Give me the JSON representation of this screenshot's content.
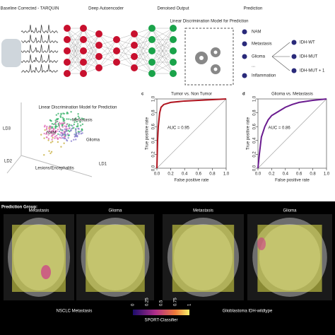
{
  "pipeline": {
    "steps": [
      "Baseline Corrected - TARQUIN",
      "Deep Autoencoder",
      "Denoised Output",
      "Prediction"
    ],
    "model_box": "Linear Discrimination Model for Prediction",
    "classes": [
      "NAM",
      "Metastasis",
      "Glioma",
      "...",
      "Inflammation"
    ],
    "subtypes": [
      "IDH-WT",
      "IDH-MUT",
      "IDH-MUT + 1"
    ]
  },
  "scatter": {
    "title": "Linear Discrimination Model for Prediction",
    "axes": [
      "LD3",
      "LD2",
      "LD1"
    ],
    "groups": [
      "Metastasis",
      "Glioma",
      "NAM",
      "Lesions/Encephalitis"
    ]
  },
  "chart_data": [
    {
      "type": "line",
      "label": "c",
      "title": "Tumor vs. Non Tumor",
      "xlabel": "False positive rate",
      "ylabel": "True positive rate",
      "annotation": "AUC = 0.95",
      "color": "#b0131e",
      "x": [
        0,
        0.01,
        0.02,
        0.04,
        0.06,
        0.1,
        0.2,
        0.4,
        0.6,
        0.8,
        1
      ],
      "values": [
        0,
        0.4,
        0.6,
        0.8,
        0.88,
        0.92,
        0.95,
        0.97,
        0.98,
        0.99,
        1
      ],
      "xlim": [
        0,
        1
      ],
      "ylim": [
        0,
        1
      ],
      "xticks": [
        {
          "value": 0,
          "label": "0.0"
        },
        {
          "value": 0.2,
          "label": "0.2"
        },
        {
          "value": 0.4,
          "label": "0.4"
        },
        {
          "value": 0.6,
          "label": "0.6"
        },
        {
          "value": 0.8,
          "label": "0.8"
        },
        {
          "value": 1,
          "label": "1.0"
        }
      ],
      "yticks": [
        {
          "value": 0,
          "label": "0.0"
        },
        {
          "value": 0.2,
          "label": "0.2"
        },
        {
          "value": 0.4,
          "label": "0.4"
        },
        {
          "value": 0.6,
          "label": "0.6"
        },
        {
          "value": 0.8,
          "label": "0.8"
        },
        {
          "value": 1,
          "label": "1.0"
        }
      ]
    },
    {
      "type": "line",
      "label": "d",
      "title": "Glioma vs. Metastasis",
      "xlabel": "False positive rate",
      "ylabel": "True positive rate",
      "annotation": "AUC = 0.86",
      "color": "#6a1b8f",
      "x": [
        0,
        0.02,
        0.05,
        0.1,
        0.15,
        0.2,
        0.3,
        0.4,
        0.5,
        0.6,
        0.8,
        1
      ],
      "values": [
        0,
        0.2,
        0.45,
        0.6,
        0.7,
        0.76,
        0.82,
        0.88,
        0.92,
        0.95,
        0.98,
        1
      ],
      "xlim": [
        0,
        1
      ],
      "ylim": [
        0,
        1
      ],
      "xticks": [
        {
          "value": 0,
          "label": "0.0"
        },
        {
          "value": 0.2,
          "label": "0.2"
        },
        {
          "value": 0.4,
          "label": "0.4"
        },
        {
          "value": 0.6,
          "label": "0.6"
        },
        {
          "value": 0.8,
          "label": "0.8"
        },
        {
          "value": 1,
          "label": "1.0"
        }
      ],
      "yticks": [
        {
          "value": 0,
          "label": "0.0"
        },
        {
          "value": 0.2,
          "label": "0.2"
        },
        {
          "value": 0.4,
          "label": "0.4"
        },
        {
          "value": 0.6,
          "label": "0.6"
        },
        {
          "value": 0.8,
          "label": "0.8"
        },
        {
          "value": 1,
          "label": "1.0"
        }
      ]
    }
  ],
  "mri": {
    "heading": "Prediction Group:",
    "panel_labels": [
      "Metastasis",
      "Glioma",
      "Metastasis",
      "Glioma"
    ],
    "cases": [
      "NSCLC Metastasis",
      "Glioblastoma IDH-wildtype"
    ],
    "colorbar_ticks": [
      "0",
      "0.25",
      "0.5",
      "0.75",
      "1"
    ],
    "colorbar_label": "SPORT-Classifier"
  }
}
